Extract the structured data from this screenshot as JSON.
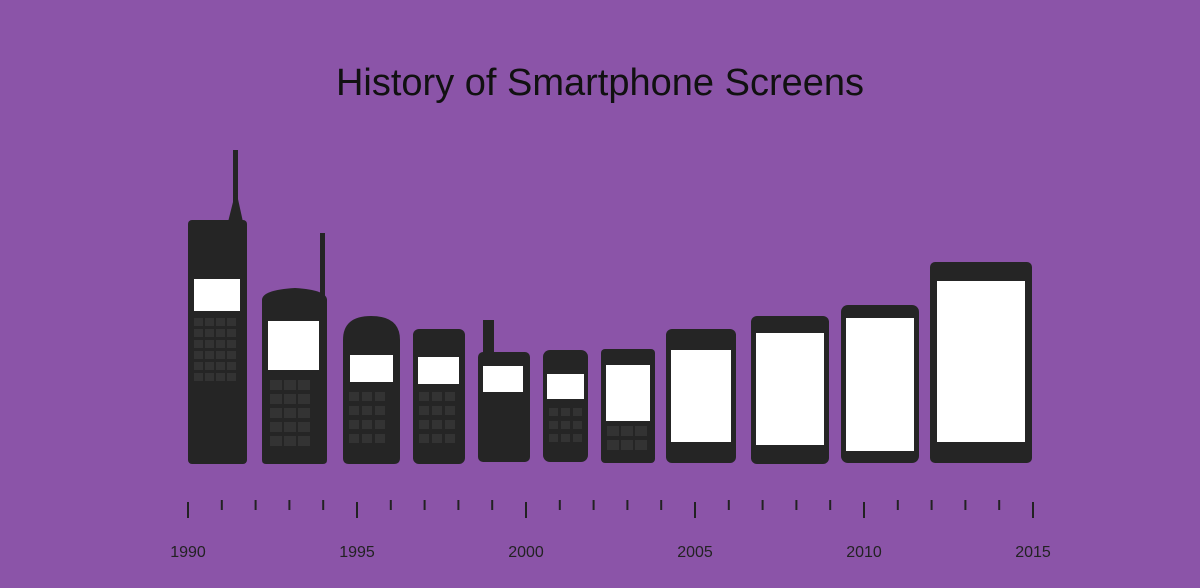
{
  "chart_data": {
    "type": "timeline",
    "title": "History of Smartphone Screens",
    "xlim": [
      1990,
      2015
    ],
    "xticks": [
      1990,
      1995,
      2000,
      2005,
      2010,
      2015
    ],
    "xticks_minor": [
      1991,
      1992,
      1993,
      1994,
      1996,
      1997,
      1998,
      1999,
      2001,
      2002,
      2003,
      2004,
      2006,
      2007,
      2008,
      2009,
      2011,
      2012,
      2013,
      2014
    ]
  }
}
